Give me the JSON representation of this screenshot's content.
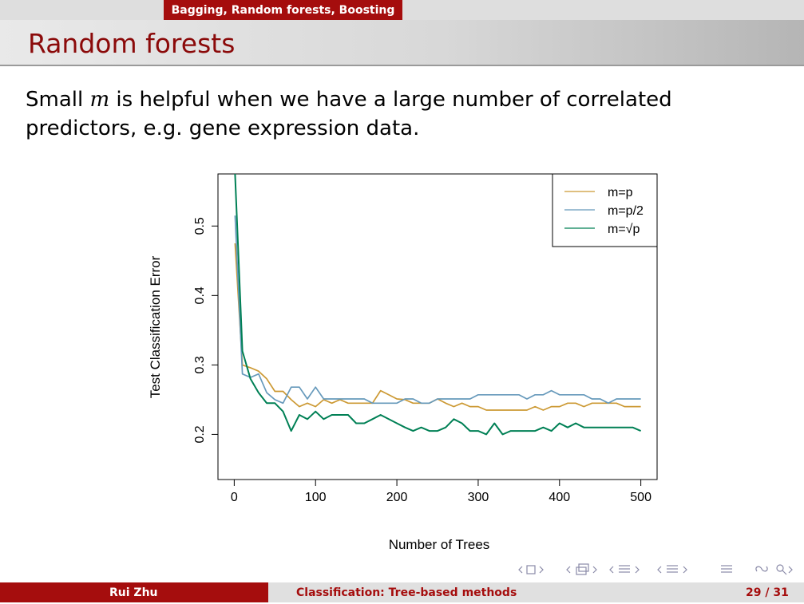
{
  "header": {
    "section": "Bagging, Random forests, Boosting",
    "title": "Random forests"
  },
  "body": {
    "text_before": "Small ",
    "math_var": "m",
    "text_after": " is helpful when we have a large number of correlated predictors, e.g. gene expression data."
  },
  "chart_data": {
    "type": "line",
    "xlabel": "Number of Trees",
    "ylabel": "Test Classification Error",
    "xlim": [
      -20,
      520
    ],
    "ylim": [
      0.135,
      0.575
    ],
    "xticks": [
      0,
      100,
      200,
      300,
      400,
      500
    ],
    "xtick_labels": [
      "0",
      "100",
      "200",
      "300",
      "400",
      "500"
    ],
    "yticks": [
      0.2,
      0.3,
      0.4,
      0.5
    ],
    "ytick_labels": [
      "0.2",
      "0.3",
      "0.4",
      "0.5"
    ],
    "grid": false,
    "legend_position": "top-right",
    "legend": [
      "m=p",
      "m=p/2",
      "m=√p"
    ],
    "x": [
      1,
      10,
      20,
      30,
      40,
      50,
      60,
      70,
      80,
      90,
      100,
      110,
      120,
      130,
      140,
      150,
      160,
      170,
      180,
      190,
      200,
      210,
      220,
      230,
      240,
      250,
      260,
      270,
      280,
      290,
      300,
      310,
      320,
      330,
      340,
      350,
      360,
      370,
      380,
      390,
      400,
      410,
      420,
      430,
      440,
      450,
      460,
      470,
      480,
      490,
      500
    ],
    "series": [
      {
        "name": "m=p",
        "color": "#cc9933",
        "values": [
          0.475,
          0.3,
          0.296,
          0.291,
          0.28,
          0.262,
          0.262,
          0.25,
          0.24,
          0.245,
          0.24,
          0.25,
          0.245,
          0.25,
          0.245,
          0.245,
          0.245,
          0.245,
          0.263,
          0.257,
          0.251,
          0.25,
          0.245,
          0.245,
          0.245,
          0.251,
          0.245,
          0.24,
          0.245,
          0.24,
          0.24,
          0.235,
          0.235,
          0.235,
          0.235,
          0.235,
          0.235,
          0.24,
          0.235,
          0.24,
          0.24,
          0.245,
          0.245,
          0.24,
          0.245,
          0.245,
          0.245,
          0.245,
          0.24,
          0.24,
          0.24
        ]
      },
      {
        "name": "m=p/2",
        "color": "#6699bb",
        "values": [
          0.515,
          0.287,
          0.282,
          0.287,
          0.26,
          0.25,
          0.245,
          0.268,
          0.268,
          0.251,
          0.268,
          0.251,
          0.251,
          0.251,
          0.251,
          0.251,
          0.251,
          0.245,
          0.245,
          0.245,
          0.245,
          0.251,
          0.251,
          0.245,
          0.245,
          0.251,
          0.251,
          0.251,
          0.251,
          0.251,
          0.257,
          0.257,
          0.257,
          0.257,
          0.257,
          0.257,
          0.251,
          0.257,
          0.257,
          0.263,
          0.257,
          0.257,
          0.257,
          0.257,
          0.251,
          0.251,
          0.245,
          0.251,
          0.251,
          0.251,
          0.251
        ]
      },
      {
        "name": "m=√p",
        "color": "#008055",
        "values": [
          0.575,
          0.32,
          0.28,
          0.26,
          0.245,
          0.245,
          0.233,
          0.205,
          0.228,
          0.222,
          0.233,
          0.222,
          0.228,
          0.228,
          0.228,
          0.216,
          0.216,
          0.222,
          0.228,
          0.222,
          0.216,
          0.21,
          0.205,
          0.21,
          0.205,
          0.205,
          0.21,
          0.222,
          0.216,
          0.205,
          0.205,
          0.2,
          0.216,
          0.2,
          0.205,
          0.205,
          0.205,
          0.205,
          0.21,
          0.205,
          0.216,
          0.21,
          0.216,
          0.21,
          0.21,
          0.21,
          0.21,
          0.21,
          0.21,
          0.21,
          0.205
        ]
      }
    ]
  },
  "nav": {
    "icon_color": "#8a8aa8"
  },
  "footer": {
    "author": "Rui Zhu",
    "short_title": "Classification: Tree-based methods",
    "page_current": "29",
    "page_sep": "/",
    "page_total": "31"
  }
}
